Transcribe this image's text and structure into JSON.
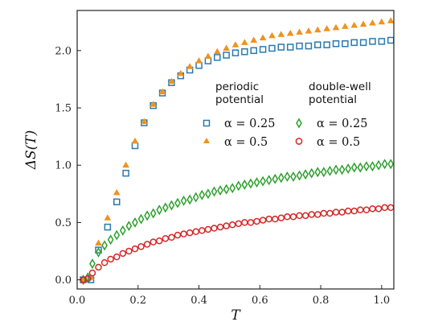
{
  "chart_data": {
    "type": "scatter",
    "xlabel": "T",
    "ylabel": "ΔS(T)",
    "xlim": [
      0.0,
      1.04
    ],
    "ylim": [
      -0.08,
      2.35
    ],
    "xticks": [
      "0.0",
      "0.2",
      "0.4",
      "0.6",
      "0.8",
      "1.0"
    ],
    "yticks": [
      "0.0",
      "0.5",
      "1.0",
      "1.5",
      "2.0"
    ],
    "grid": false,
    "legend": {
      "placement": "center-right",
      "group_titles": [
        [
          "periodic",
          "potential"
        ],
        [
          "double-well",
          "potential"
        ]
      ],
      "entries": [
        {
          "group": 0,
          "symbol": "square",
          "label": "α = 0.25"
        },
        {
          "group": 0,
          "symbol": "triangle",
          "label": "α = 0.5"
        },
        {
          "group": 1,
          "symbol": "diamond",
          "label": "α = 0.25"
        },
        {
          "group": 1,
          "symbol": "circle",
          "label": "α = 0.5"
        }
      ]
    },
    "series": [
      {
        "group": "periodic potential",
        "alpha_label": "α = 0.25",
        "marker": "square",
        "color": "#2a7ab0",
        "x": [
          0.02,
          0.045,
          0.07,
          0.1,
          0.13,
          0.16,
          0.19,
          0.22,
          0.25,
          0.28,
          0.31,
          0.34,
          0.37,
          0.4,
          0.43,
          0.46,
          0.49,
          0.52,
          0.55,
          0.58,
          0.61,
          0.64,
          0.67,
          0.7,
          0.73,
          0.76,
          0.79,
          0.82,
          0.85,
          0.88,
          0.91,
          0.94,
          0.97,
          1.0,
          1.03
        ],
        "y": [
          0.0,
          0.0,
          0.26,
          0.46,
          0.68,
          0.93,
          1.17,
          1.37,
          1.52,
          1.63,
          1.72,
          1.78,
          1.83,
          1.87,
          1.91,
          1.94,
          1.96,
          1.98,
          1.99,
          2.0,
          2.01,
          2.02,
          2.03,
          2.03,
          2.04,
          2.04,
          2.05,
          2.05,
          2.06,
          2.06,
          2.07,
          2.07,
          2.08,
          2.08,
          2.09
        ]
      },
      {
        "group": "periodic potential",
        "alpha_label": "α = 0.5",
        "marker": "triangle",
        "color": "#f0921e",
        "x": [
          0.02,
          0.045,
          0.07,
          0.1,
          0.13,
          0.16,
          0.19,
          0.22,
          0.25,
          0.28,
          0.31,
          0.34,
          0.37,
          0.4,
          0.43,
          0.46,
          0.49,
          0.52,
          0.55,
          0.58,
          0.61,
          0.64,
          0.67,
          0.7,
          0.73,
          0.76,
          0.79,
          0.82,
          0.85,
          0.88,
          0.91,
          0.94,
          0.97,
          1.0,
          1.03
        ],
        "y": [
          0.0,
          0.02,
          0.32,
          0.54,
          0.76,
          1.0,
          1.21,
          1.38,
          1.53,
          1.64,
          1.73,
          1.8,
          1.86,
          1.91,
          1.95,
          1.99,
          2.02,
          2.05,
          2.07,
          2.09,
          2.11,
          2.13,
          2.14,
          2.15,
          2.16,
          2.17,
          2.18,
          2.19,
          2.2,
          2.21,
          2.22,
          2.23,
          2.24,
          2.25,
          2.26
        ]
      },
      {
        "group": "double-well potential",
        "alpha_label": "α = 0.25",
        "marker": "diamond",
        "color": "#2ca02c",
        "x": [
          0.02,
          0.035,
          0.05,
          0.07,
          0.09,
          0.11,
          0.13,
          0.15,
          0.17,
          0.19,
          0.21,
          0.23,
          0.25,
          0.27,
          0.29,
          0.31,
          0.33,
          0.35,
          0.37,
          0.39,
          0.41,
          0.43,
          0.45,
          0.47,
          0.49,
          0.51,
          0.53,
          0.55,
          0.57,
          0.59,
          0.61,
          0.63,
          0.65,
          0.67,
          0.69,
          0.71,
          0.73,
          0.75,
          0.77,
          0.79,
          0.81,
          0.83,
          0.85,
          0.87,
          0.89,
          0.91,
          0.93,
          0.95,
          0.97,
          0.99,
          1.01,
          1.03
        ],
        "y": [
          0.0,
          0.02,
          0.14,
          0.24,
          0.3,
          0.35,
          0.39,
          0.43,
          0.47,
          0.5,
          0.53,
          0.56,
          0.58,
          0.61,
          0.63,
          0.65,
          0.67,
          0.69,
          0.7,
          0.72,
          0.74,
          0.75,
          0.77,
          0.78,
          0.79,
          0.8,
          0.82,
          0.83,
          0.84,
          0.85,
          0.86,
          0.87,
          0.88,
          0.89,
          0.9,
          0.9,
          0.91,
          0.92,
          0.93,
          0.94,
          0.94,
          0.95,
          0.96,
          0.96,
          0.97,
          0.98,
          0.98,
          0.99,
          0.99,
          1.0,
          1.01,
          1.01
        ]
      },
      {
        "group": "double-well potential",
        "alpha_label": "α = 0.5",
        "marker": "circle",
        "color": "#d62728",
        "x": [
          0.02,
          0.035,
          0.05,
          0.07,
          0.09,
          0.11,
          0.13,
          0.15,
          0.17,
          0.19,
          0.21,
          0.23,
          0.25,
          0.27,
          0.29,
          0.31,
          0.33,
          0.35,
          0.37,
          0.39,
          0.41,
          0.43,
          0.45,
          0.47,
          0.49,
          0.51,
          0.53,
          0.55,
          0.57,
          0.59,
          0.61,
          0.63,
          0.65,
          0.67,
          0.69,
          0.71,
          0.73,
          0.75,
          0.77,
          0.79,
          0.81,
          0.83,
          0.85,
          0.87,
          0.89,
          0.91,
          0.93,
          0.95,
          0.97,
          0.99,
          1.01,
          1.03
        ],
        "y": [
          0.0,
          0.01,
          0.06,
          0.11,
          0.15,
          0.18,
          0.2,
          0.23,
          0.25,
          0.27,
          0.29,
          0.31,
          0.33,
          0.34,
          0.36,
          0.37,
          0.39,
          0.4,
          0.41,
          0.42,
          0.43,
          0.44,
          0.45,
          0.46,
          0.47,
          0.48,
          0.49,
          0.5,
          0.5,
          0.51,
          0.52,
          0.53,
          0.53,
          0.54,
          0.55,
          0.55,
          0.56,
          0.56,
          0.57,
          0.57,
          0.58,
          0.58,
          0.59,
          0.59,
          0.6,
          0.6,
          0.61,
          0.61,
          0.62,
          0.62,
          0.63,
          0.63
        ]
      }
    ]
  }
}
